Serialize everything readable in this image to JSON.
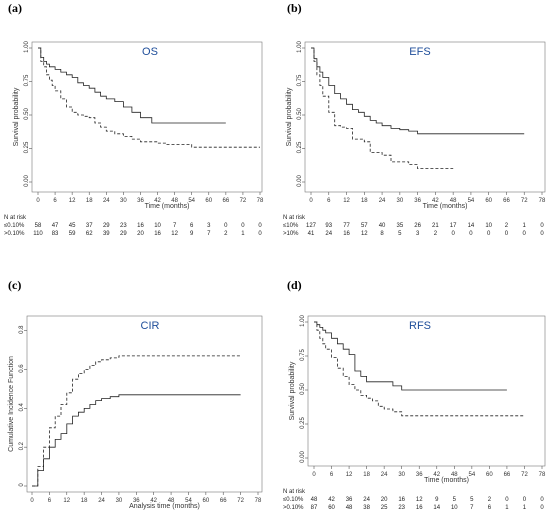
{
  "chart_data": [
    {
      "id": "a",
      "type": "line",
      "panel_label": "(a)",
      "title": "OS",
      "ylabel": "Survival probability",
      "xlabel": "Time (months)",
      "xticks": [
        0,
        6,
        12,
        18,
        24,
        30,
        36,
        42,
        48,
        54,
        60,
        66,
        72,
        78
      ],
      "yticks": [
        "0.00",
        "0.25",
        "0.50",
        "0.75",
        "1.00"
      ],
      "xlim": [
        0,
        78
      ],
      "ylim": [
        0,
        1
      ],
      "series": [
        {
          "style": "solid",
          "x": [
            0,
            1,
            2,
            3,
            4,
            6,
            8,
            10,
            12,
            14,
            16,
            18,
            20,
            22,
            24,
            27,
            30,
            33,
            36,
            40,
            42,
            48,
            54,
            60,
            66
          ],
          "y": [
            1,
            0.93,
            0.9,
            0.88,
            0.86,
            0.84,
            0.82,
            0.8,
            0.78,
            0.74,
            0.72,
            0.7,
            0.67,
            0.64,
            0.62,
            0.6,
            0.56,
            0.52,
            0.48,
            0.44,
            0.44,
            0.44,
            0.44,
            0.44,
            0.44
          ]
        },
        {
          "style": "dashed",
          "x": [
            0,
            1,
            2,
            3,
            4,
            5,
            6,
            8,
            10,
            12,
            14,
            16,
            18,
            20,
            22,
            24,
            27,
            30,
            33,
            36,
            42,
            45,
            48,
            54,
            60,
            66,
            72,
            78
          ],
          "y": [
            1,
            0.9,
            0.86,
            0.8,
            0.76,
            0.72,
            0.68,
            0.62,
            0.56,
            0.52,
            0.5,
            0.49,
            0.48,
            0.44,
            0.41,
            0.38,
            0.36,
            0.34,
            0.32,
            0.3,
            0.29,
            0.28,
            0.28,
            0.26,
            0.26,
            0.26,
            0.26,
            0.26
          ]
        }
      ],
      "risk_header": "N at risk",
      "risk_rows": [
        {
          "label": "≤0.10%",
          "values": [
            "58",
            "47",
            "45",
            "37",
            "29",
            "23",
            "16",
            "10",
            "7",
            "6",
            "3",
            "0",
            "0",
            "0"
          ]
        },
        {
          "label": ">0.10%",
          "values": [
            "110",
            "83",
            "59",
            "62",
            "39",
            "29",
            "20",
            "16",
            "12",
            "9",
            "7",
            "2",
            "1",
            "0"
          ]
        }
      ]
    },
    {
      "id": "b",
      "type": "line",
      "panel_label": "(b)",
      "title": "EFS",
      "ylabel": "Survival probability",
      "xlabel": "Time (months)",
      "xticks": [
        0,
        6,
        12,
        18,
        24,
        30,
        36,
        42,
        48,
        54,
        60,
        66,
        72,
        78
      ],
      "yticks": [
        "0.00",
        "0.25",
        "0.50",
        "0.75",
        "1.00"
      ],
      "xlim": [
        0,
        78
      ],
      "ylim": [
        0,
        1
      ],
      "series": [
        {
          "style": "solid",
          "x": [
            0,
            1,
            2,
            3,
            4,
            6,
            8,
            10,
            12,
            14,
            16,
            18,
            20,
            22,
            24,
            27,
            30,
            33,
            36,
            42,
            48,
            54,
            60,
            66,
            72
          ],
          "y": [
            1,
            0.92,
            0.86,
            0.82,
            0.78,
            0.72,
            0.66,
            0.62,
            0.58,
            0.54,
            0.52,
            0.49,
            0.46,
            0.44,
            0.42,
            0.4,
            0.39,
            0.38,
            0.36,
            0.36,
            0.36,
            0.36,
            0.36,
            0.36,
            0.36
          ]
        },
        {
          "style": "dashed",
          "x": [
            0,
            1,
            2,
            3,
            4,
            6,
            8,
            10,
            12,
            14,
            18,
            20,
            24,
            27,
            30,
            33,
            36,
            42,
            48
          ],
          "y": [
            1,
            0.9,
            0.8,
            0.72,
            0.64,
            0.52,
            0.42,
            0.41,
            0.4,
            0.32,
            0.3,
            0.22,
            0.2,
            0.15,
            0.15,
            0.13,
            0.1,
            0.1,
            0.1
          ]
        }
      ],
      "risk_header": "N at risk",
      "risk_rows": [
        {
          "label": "≤10%",
          "values": [
            "127",
            "93",
            "77",
            "57",
            "40",
            "35",
            "26",
            "21",
            "17",
            "14",
            "10",
            "2",
            "1",
            "0"
          ]
        },
        {
          "label": ">10%",
          "values": [
            "41",
            "24",
            "16",
            "12",
            "8",
            "5",
            "3",
            "2",
            "0",
            "0",
            "0",
            "0",
            "0",
            "0"
          ]
        }
      ]
    },
    {
      "id": "c",
      "type": "line",
      "panel_label": "(c)",
      "title": "CIR",
      "ylabel": "Cumulative Incidence Function",
      "xlabel": "Analysis time (months)",
      "xticks": [
        0,
        6,
        12,
        18,
        24,
        30,
        36,
        42,
        48,
        54,
        60,
        66,
        72,
        78
      ],
      "yticks": [
        "0",
        "0.2",
        "0.4",
        "0.6",
        "0.8"
      ],
      "xlim": [
        0,
        78
      ],
      "ylim": [
        0,
        0.85
      ],
      "series": [
        {
          "style": "solid",
          "x": [
            0,
            2,
            4,
            6,
            8,
            10,
            12,
            14,
            16,
            18,
            20,
            22,
            24,
            27,
            30,
            33,
            36,
            42,
            48,
            54,
            60,
            66,
            72
          ],
          "y": [
            0,
            0.08,
            0.14,
            0.2,
            0.24,
            0.27,
            0.32,
            0.36,
            0.38,
            0.4,
            0.42,
            0.44,
            0.45,
            0.46,
            0.47,
            0.47,
            0.47,
            0.47,
            0.47,
            0.47,
            0.47,
            0.47,
            0.47
          ]
        },
        {
          "style": "dashed",
          "x": [
            0,
            2,
            4,
            6,
            8,
            10,
            12,
            14,
            16,
            18,
            20,
            22,
            24,
            27,
            30,
            33,
            36,
            42,
            48,
            54,
            60,
            66,
            72
          ],
          "y": [
            0,
            0.1,
            0.2,
            0.3,
            0.36,
            0.42,
            0.48,
            0.55,
            0.58,
            0.6,
            0.62,
            0.64,
            0.65,
            0.66,
            0.67,
            0.67,
            0.67,
            0.67,
            0.67,
            0.67,
            0.67,
            0.67,
            0.67
          ]
        }
      ]
    },
    {
      "id": "d",
      "type": "line",
      "panel_label": "(d)",
      "title": "RFS",
      "ylabel": "Survival probability",
      "xlabel": "Time (months)",
      "xticks": [
        0,
        6,
        12,
        18,
        24,
        30,
        36,
        42,
        48,
        54,
        60,
        66,
        72,
        78
      ],
      "yticks": [
        "0.00",
        "0.25",
        "0.50",
        "0.75",
        "1.00"
      ],
      "xlim": [
        0,
        78
      ],
      "ylim": [
        0,
        1
      ],
      "series": [
        {
          "style": "solid",
          "x": [
            0,
            1,
            2,
            3,
            4,
            6,
            8,
            10,
            12,
            14,
            16,
            18,
            20,
            22,
            24,
            27,
            30,
            33,
            36,
            42,
            48,
            54,
            60,
            66
          ],
          "y": [
            1,
            0.98,
            0.96,
            0.94,
            0.92,
            0.88,
            0.84,
            0.8,
            0.76,
            0.64,
            0.6,
            0.56,
            0.56,
            0.56,
            0.56,
            0.53,
            0.5,
            0.5,
            0.5,
            0.5,
            0.5,
            0.5,
            0.5,
            0.5
          ]
        },
        {
          "style": "dashed",
          "x": [
            0,
            1,
            2,
            3,
            4,
            6,
            8,
            10,
            12,
            14,
            16,
            18,
            20,
            22,
            24,
            27,
            30,
            33,
            36,
            42,
            48,
            54,
            60,
            66,
            72
          ],
          "y": [
            1,
            0.94,
            0.88,
            0.84,
            0.8,
            0.74,
            0.66,
            0.6,
            0.54,
            0.5,
            0.46,
            0.44,
            0.42,
            0.38,
            0.36,
            0.34,
            0.31,
            0.31,
            0.31,
            0.31,
            0.31,
            0.31,
            0.31,
            0.31,
            0.31
          ]
        }
      ],
      "risk_header": "N at risk",
      "risk_rows": [
        {
          "label": "≤0.10%",
          "values": [
            "48",
            "42",
            "36",
            "24",
            "20",
            "16",
            "12",
            "9",
            "5",
            "5",
            "2",
            "0",
            "0",
            "0"
          ]
        },
        {
          "label": ">0.10%",
          "values": [
            "87",
            "60",
            "48",
            "38",
            "25",
            "23",
            "16",
            "14",
            "10",
            "7",
            "6",
            "1",
            "1",
            "0"
          ]
        }
      ]
    }
  ]
}
